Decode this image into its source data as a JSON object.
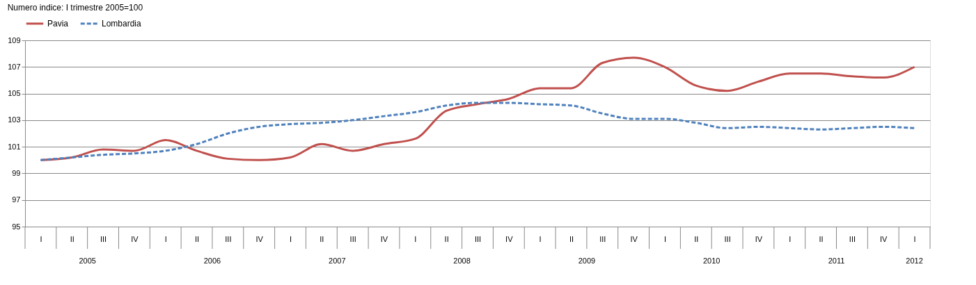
{
  "chart_data": {
    "type": "line",
    "subtitle": "Numero indice: I trimestre 2005=100",
    "categories": [
      "I",
      "II",
      "III",
      "IV",
      "I",
      "II",
      "III",
      "IV",
      "I",
      "II",
      "III",
      "IV",
      "I",
      "II",
      "III",
      "IV",
      "I",
      "II",
      "III",
      "IV",
      "I",
      "II",
      "III",
      "IV",
      "I",
      "II",
      "III",
      "IV",
      "I"
    ],
    "annotations": [
      "2005",
      "2006",
      "2007",
      "2008",
      "2009",
      "2010",
      "2011",
      "2012"
    ],
    "series": [
      {
        "name": "Pavia",
        "color": "#c0504d",
        "line_style": "solid",
        "values": [
          100.0,
          100.2,
          100.8,
          100.7,
          101.5,
          100.7,
          100.1,
          100.0,
          100.2,
          101.2,
          100.7,
          101.2,
          101.6,
          103.7,
          104.2,
          104.6,
          105.4,
          105.4,
          107.3,
          107.7,
          107.0,
          105.6,
          105.2,
          105.9,
          106.5,
          106.5,
          106.3,
          106.2,
          107.0
        ]
      },
      {
        "name": "Lombardia",
        "color": "#4f81bd",
        "line_style": "dashed",
        "values": [
          100.0,
          100.2,
          100.4,
          100.5,
          100.7,
          101.2,
          102.0,
          102.5,
          102.7,
          102.8,
          103.0,
          103.3,
          103.6,
          104.1,
          104.3,
          104.3,
          104.2,
          104.1,
          103.5,
          103.1,
          103.1,
          102.8,
          102.4,
          102.5,
          102.4,
          102.3,
          102.4,
          102.5,
          102.4
        ]
      }
    ],
    "ylim": [
      95,
      109
    ],
    "yticks": [
      95,
      97,
      99,
      101,
      103,
      105,
      107,
      109
    ],
    "grid": "y",
    "legend": "top",
    "marker": "none"
  }
}
